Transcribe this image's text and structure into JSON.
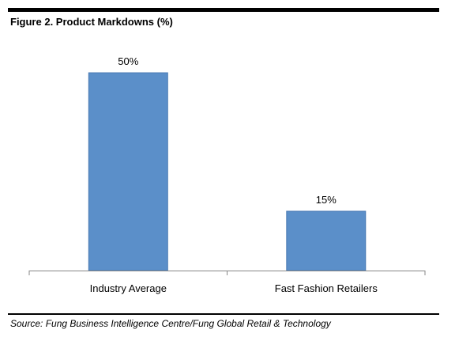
{
  "figure": {
    "title": "Figure 2. Product Markdowns (%)",
    "source": "Source: Fung Business Intelligence Centre/Fung Global Retail & Technology"
  },
  "chart_data": {
    "type": "bar",
    "title": "Figure 2. Product Markdowns (%)",
    "categories": [
      "Industry Average",
      "Fast Fashion Retailers"
    ],
    "values": [
      50,
      15
    ],
    "value_labels": [
      "50%",
      "15%"
    ],
    "xlabel": "",
    "ylabel": "",
    "ylim": [
      0,
      60
    ],
    "grid": false,
    "legend": "none",
    "bar_color": "#5b8fc9",
    "bar_edge_color": "#4a7ab3",
    "axis_color": "#868686"
  }
}
